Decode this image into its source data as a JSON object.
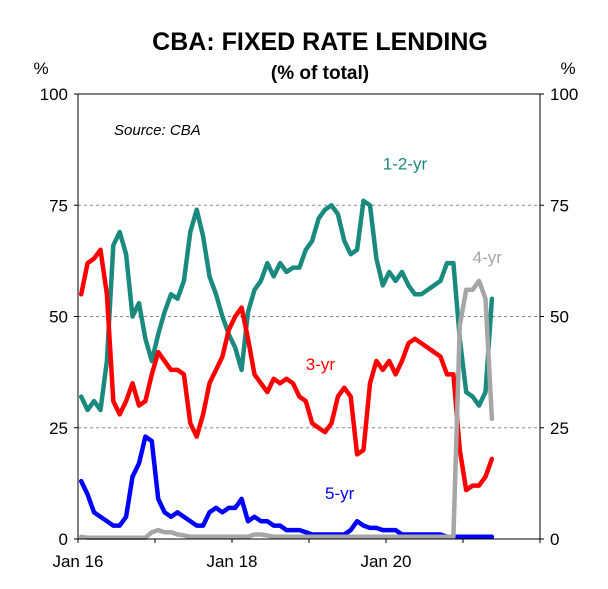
{
  "chart_data": {
    "type": "line",
    "title": "CBA: FIXED RATE LENDING",
    "subtitle": "(% of total)",
    "source": "Source: CBA",
    "y_unit_left": "%",
    "y_unit_right": "%",
    "ylim": [
      0,
      100
    ],
    "y_ticks": [
      0,
      25,
      50,
      75,
      100
    ],
    "y_tick_labels": [
      "0",
      "25",
      "50",
      "75",
      "100"
    ],
    "x_range": [
      "2016-01",
      "2021-12"
    ],
    "x_ticks": [
      {
        "date": "2016-01",
        "label": "Jan 16"
      },
      {
        "date": "2018-01",
        "label": "Jan 18"
      },
      {
        "date": "2020-01",
        "label": "Jan 20"
      }
    ],
    "grid": "horizontal-dashed",
    "series": [
      {
        "name": "1-2-yr",
        "color": "#1a8a7e",
        "points": [
          [
            "2016-01",
            32
          ],
          [
            "2016-02",
            29
          ],
          [
            "2016-03",
            31
          ],
          [
            "2016-04",
            29
          ],
          [
            "2016-05",
            40
          ],
          [
            "2016-06",
            66
          ],
          [
            "2016-07",
            69
          ],
          [
            "2016-08",
            64
          ],
          [
            "2016-09",
            50
          ],
          [
            "2016-10",
            53
          ],
          [
            "2016-11",
            45
          ],
          [
            "2016-12",
            40
          ],
          [
            "2017-01",
            46
          ],
          [
            "2017-02",
            51
          ],
          [
            "2017-03",
            55
          ],
          [
            "2017-04",
            54
          ],
          [
            "2017-05",
            58
          ],
          [
            "2017-06",
            69
          ],
          [
            "2017-07",
            74
          ],
          [
            "2017-08",
            68
          ],
          [
            "2017-09",
            59
          ],
          [
            "2017-10",
            55
          ],
          [
            "2017-11",
            50
          ],
          [
            "2017-12",
            46
          ],
          [
            "2018-01",
            43
          ],
          [
            "2018-02",
            38
          ],
          [
            "2018-03",
            51
          ],
          [
            "2018-04",
            56
          ],
          [
            "2018-05",
            58
          ],
          [
            "2018-06",
            62
          ],
          [
            "2018-07",
            59
          ],
          [
            "2018-08",
            62
          ],
          [
            "2018-09",
            60
          ],
          [
            "2018-10",
            61
          ],
          [
            "2018-11",
            61
          ],
          [
            "2018-12",
            65
          ],
          [
            "2019-01",
            67
          ],
          [
            "2019-02",
            72
          ],
          [
            "2019-03",
            74
          ],
          [
            "2019-04",
            75
          ],
          [
            "2019-05",
            73
          ],
          [
            "2019-06",
            67
          ],
          [
            "2019-07",
            64
          ],
          [
            "2019-08",
            65
          ],
          [
            "2019-09",
            76
          ],
          [
            "2019-10",
            75
          ],
          [
            "2019-11",
            63
          ],
          [
            "2019-12",
            57
          ],
          [
            "2020-01",
            60
          ],
          [
            "2020-02",
            58
          ],
          [
            "2020-03",
            60
          ],
          [
            "2020-04",
            57
          ],
          [
            "2020-05",
            55
          ],
          [
            "2020-06",
            55
          ],
          [
            "2020-07",
            56
          ],
          [
            "2020-08",
            57
          ],
          [
            "2020-09",
            58
          ],
          [
            "2020-10",
            62
          ],
          [
            "2020-11",
            62
          ],
          [
            "2020-12",
            45
          ],
          [
            "2021-01",
            33
          ],
          [
            "2021-02",
            32
          ],
          [
            "2021-03",
            30
          ],
          [
            "2021-04",
            33
          ],
          [
            "2021-05",
            54
          ]
        ]
      },
      {
        "name": "3-yr",
        "color": "#ff0000",
        "points": [
          [
            "2016-01",
            55
          ],
          [
            "2016-02",
            62
          ],
          [
            "2016-03",
            63
          ],
          [
            "2016-04",
            65
          ],
          [
            "2016-05",
            55
          ],
          [
            "2016-06",
            31
          ],
          [
            "2016-07",
            28
          ],
          [
            "2016-08",
            31
          ],
          [
            "2016-09",
            35
          ],
          [
            "2016-10",
            30
          ],
          [
            "2016-11",
            31
          ],
          [
            "2016-12",
            37
          ],
          [
            "2017-01",
            42
          ],
          [
            "2017-02",
            40
          ],
          [
            "2017-03",
            38
          ],
          [
            "2017-04",
            38
          ],
          [
            "2017-05",
            37
          ],
          [
            "2017-06",
            26
          ],
          [
            "2017-07",
            23
          ],
          [
            "2017-08",
            28
          ],
          [
            "2017-09",
            35
          ],
          [
            "2017-10",
            38
          ],
          [
            "2017-11",
            41
          ],
          [
            "2017-12",
            47
          ],
          [
            "2018-01",
            50
          ],
          [
            "2018-02",
            52
          ],
          [
            "2018-03",
            45
          ],
          [
            "2018-04",
            37
          ],
          [
            "2018-05",
            35
          ],
          [
            "2018-06",
            33
          ],
          [
            "2018-07",
            36
          ],
          [
            "2018-08",
            35
          ],
          [
            "2018-09",
            36
          ],
          [
            "2018-10",
            35
          ],
          [
            "2018-11",
            32
          ],
          [
            "2018-12",
            31
          ],
          [
            "2019-01",
            26
          ],
          [
            "2019-02",
            25
          ],
          [
            "2019-03",
            24
          ],
          [
            "2019-04",
            26
          ],
          [
            "2019-05",
            32
          ],
          [
            "2019-06",
            34
          ],
          [
            "2019-07",
            32
          ],
          [
            "2019-08",
            19
          ],
          [
            "2019-09",
            20
          ],
          [
            "2019-10",
            35
          ],
          [
            "2019-11",
            40
          ],
          [
            "2019-12",
            38
          ],
          [
            "2020-01",
            40
          ],
          [
            "2020-02",
            37
          ],
          [
            "2020-03",
            40
          ],
          [
            "2020-04",
            44
          ],
          [
            "2020-05",
            45
          ],
          [
            "2020-06",
            44
          ],
          [
            "2020-07",
            43
          ],
          [
            "2020-08",
            42
          ],
          [
            "2020-09",
            41
          ],
          [
            "2020-10",
            37
          ],
          [
            "2020-11",
            37
          ],
          [
            "2020-12",
            20
          ],
          [
            "2021-01",
            11
          ],
          [
            "2021-02",
            12
          ],
          [
            "2021-03",
            12
          ],
          [
            "2021-04",
            14
          ],
          [
            "2021-05",
            18
          ]
        ]
      },
      {
        "name": "5-yr",
        "color": "#0000ff",
        "points": [
          [
            "2016-01",
            13
          ],
          [
            "2016-02",
            10
          ],
          [
            "2016-03",
            6
          ],
          [
            "2016-04",
            5
          ],
          [
            "2016-05",
            4
          ],
          [
            "2016-06",
            3
          ],
          [
            "2016-07",
            3
          ],
          [
            "2016-08",
            5
          ],
          [
            "2016-09",
            14
          ],
          [
            "2016-10",
            17
          ],
          [
            "2016-11",
            23
          ],
          [
            "2016-12",
            22
          ],
          [
            "2017-01",
            9
          ],
          [
            "2017-02",
            6
          ],
          [
            "2017-03",
            5
          ],
          [
            "2017-04",
            6
          ],
          [
            "2017-05",
            5
          ],
          [
            "2017-06",
            4
          ],
          [
            "2017-07",
            3
          ],
          [
            "2017-08",
            3
          ],
          [
            "2017-09",
            6
          ],
          [
            "2017-10",
            7
          ],
          [
            "2017-11",
            6
          ],
          [
            "2017-12",
            7
          ],
          [
            "2018-01",
            7
          ],
          [
            "2018-02",
            9
          ],
          [
            "2018-03",
            4
          ],
          [
            "2018-04",
            5
          ],
          [
            "2018-05",
            4
          ],
          [
            "2018-06",
            4
          ],
          [
            "2018-07",
            3
          ],
          [
            "2018-08",
            3
          ],
          [
            "2018-09",
            2
          ],
          [
            "2018-10",
            2
          ],
          [
            "2018-11",
            2
          ],
          [
            "2018-12",
            1.5
          ],
          [
            "2019-01",
            1
          ],
          [
            "2019-02",
            1
          ],
          [
            "2019-03",
            1
          ],
          [
            "2019-04",
            1
          ],
          [
            "2019-05",
            1
          ],
          [
            "2019-06",
            1
          ],
          [
            "2019-07",
            2
          ],
          [
            "2019-08",
            4
          ],
          [
            "2019-09",
            3
          ],
          [
            "2019-10",
            2.5
          ],
          [
            "2019-11",
            2.5
          ],
          [
            "2019-12",
            2
          ],
          [
            "2020-01",
            2
          ],
          [
            "2020-02",
            2
          ],
          [
            "2020-03",
            1
          ],
          [
            "2020-04",
            1
          ],
          [
            "2020-05",
            1
          ],
          [
            "2020-06",
            1
          ],
          [
            "2020-07",
            1
          ],
          [
            "2020-08",
            1
          ],
          [
            "2020-09",
            1
          ],
          [
            "2020-10",
            0.5
          ],
          [
            "2020-11",
            0.5
          ],
          [
            "2020-12",
            0.5
          ],
          [
            "2021-01",
            0.5
          ],
          [
            "2021-02",
            0.5
          ],
          [
            "2021-03",
            0.5
          ],
          [
            "2021-04",
            0.5
          ],
          [
            "2021-05",
            0.5
          ]
        ]
      },
      {
        "name": "4-yr",
        "color": "#a6a6a6",
        "points": [
          [
            "2016-01",
            0.5
          ],
          [
            "2016-02",
            0.3
          ],
          [
            "2016-03",
            0.3
          ],
          [
            "2016-04",
            0.3
          ],
          [
            "2016-05",
            0.3
          ],
          [
            "2016-06",
            0.3
          ],
          [
            "2016-07",
            0.3
          ],
          [
            "2016-08",
            0.3
          ],
          [
            "2016-09",
            0.3
          ],
          [
            "2016-10",
            0.3
          ],
          [
            "2016-11",
            0.3
          ],
          [
            "2016-12",
            1.5
          ],
          [
            "2017-01",
            2
          ],
          [
            "2017-02",
            1.5
          ],
          [
            "2017-03",
            1.5
          ],
          [
            "2017-04",
            1
          ],
          [
            "2017-05",
            0.8
          ],
          [
            "2017-06",
            0.5
          ],
          [
            "2017-07",
            0.5
          ],
          [
            "2017-08",
            0.5
          ],
          [
            "2017-09",
            0.5
          ],
          [
            "2017-10",
            0.5
          ],
          [
            "2017-11",
            0.5
          ],
          [
            "2017-12",
            0.5
          ],
          [
            "2018-01",
            0.5
          ],
          [
            "2018-02",
            0.5
          ],
          [
            "2018-03",
            0.5
          ],
          [
            "2018-04",
            1
          ],
          [
            "2018-05",
            1
          ],
          [
            "2018-06",
            0.8
          ],
          [
            "2018-07",
            0.5
          ],
          [
            "2018-08",
            0.5
          ],
          [
            "2018-09",
            0.5
          ],
          [
            "2018-10",
            0.5
          ],
          [
            "2018-11",
            0.5
          ],
          [
            "2018-12",
            0.5
          ],
          [
            "2019-01",
            0.5
          ],
          [
            "2019-02",
            0.5
          ],
          [
            "2019-03",
            0.5
          ],
          [
            "2019-04",
            0.5
          ],
          [
            "2019-05",
            0.5
          ],
          [
            "2019-06",
            0.5
          ],
          [
            "2019-07",
            0.5
          ],
          [
            "2019-08",
            0.5
          ],
          [
            "2019-09",
            0.5
          ],
          [
            "2019-10",
            0.5
          ],
          [
            "2019-11",
            0.5
          ],
          [
            "2019-12",
            0.5
          ],
          [
            "2020-01",
            0.5
          ],
          [
            "2020-02",
            0.5
          ],
          [
            "2020-03",
            0.5
          ],
          [
            "2020-04",
            0.5
          ],
          [
            "2020-05",
            0.5
          ],
          [
            "2020-06",
            0.5
          ],
          [
            "2020-07",
            0.5
          ],
          [
            "2020-08",
            0.5
          ],
          [
            "2020-09",
            0.5
          ],
          [
            "2020-10",
            0.5
          ],
          [
            "2020-11",
            0.5
          ],
          [
            "2020-12",
            48
          ],
          [
            "2021-01",
            56
          ],
          [
            "2021-02",
            56
          ],
          [
            "2021-03",
            58
          ],
          [
            "2021-04",
            54
          ],
          [
            "2021-05",
            27
          ]
        ]
      }
    ]
  }
}
